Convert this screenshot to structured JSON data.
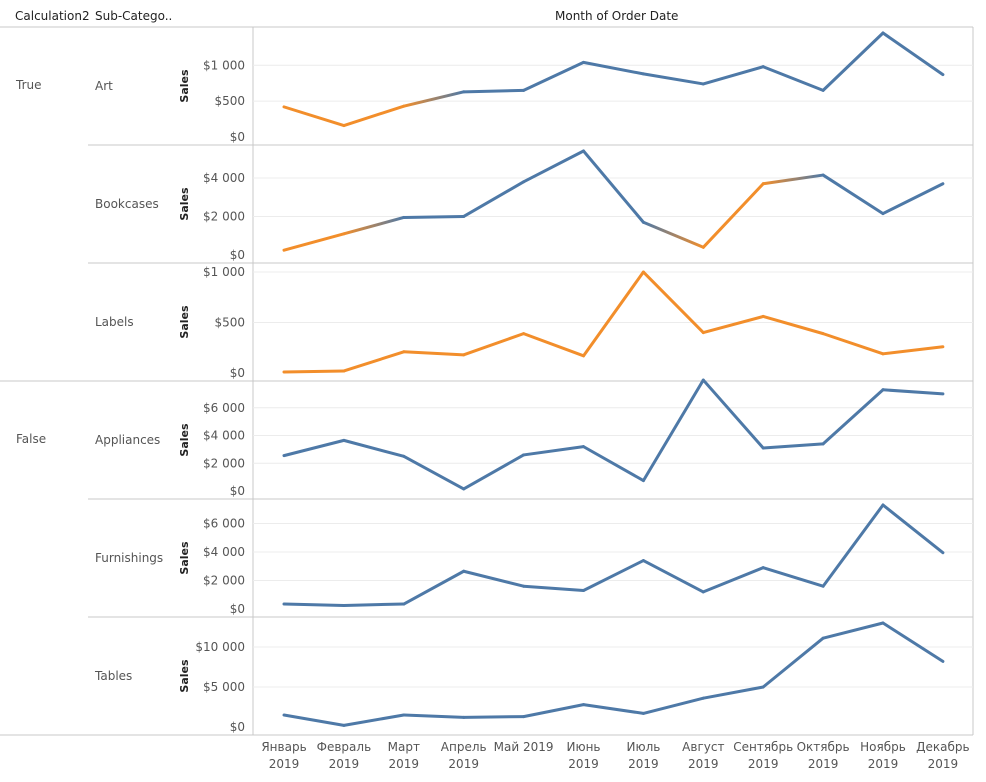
{
  "header": {
    "col1": "Calculation2",
    "col2": "Sub-Catego..",
    "col_title": "Month of Order Date"
  },
  "groups": [
    {
      "label": "True"
    },
    {
      "label": "False"
    }
  ],
  "colors": {
    "blue": "#4e79a7",
    "orange": "#f28e2b",
    "grid": "#ececec",
    "border": "#c8c8c8"
  },
  "chart_data": {
    "type": "line",
    "measure_label": "Sales",
    "x_labels": [
      [
        "Январь",
        "2019"
      ],
      [
        "Февраль",
        "2019"
      ],
      [
        "Март",
        "2019"
      ],
      [
        "Апрель",
        "2019"
      ],
      [
        "Май 2019",
        ""
      ],
      [
        "Июнь",
        "2019"
      ],
      [
        "Июль",
        "2019"
      ],
      [
        "Август",
        "2019"
      ],
      [
        "Сентябрь",
        "2019"
      ],
      [
        "Октябрь",
        "2019"
      ],
      [
        "Ноябрь",
        "2019"
      ],
      [
        "Декабрь",
        "2019"
      ]
    ],
    "panels": [
      {
        "group": "True",
        "name": "Art",
        "ylim": [
          0,
          1450
        ],
        "ticks": [
          {
            "v": 0,
            "l": "$0"
          },
          {
            "v": 500,
            "l": "$500"
          },
          {
            "v": 1000,
            "l": "$1 000"
          }
        ],
        "values": [
          420,
          160,
          430,
          630,
          650,
          1040,
          880,
          740,
          980,
          650,
          1450,
          870
        ],
        "colors": [
          "orange",
          "orange",
          "mix",
          "blue",
          "blue",
          "blue",
          "blue",
          "blue",
          "blue",
          "blue",
          "blue",
          "blue"
        ]
      },
      {
        "group": "True",
        "name": "Bookcases",
        "ylim": [
          0,
          5400
        ],
        "ticks": [
          {
            "v": 0,
            "l": "$0"
          },
          {
            "v": 2000,
            "l": "$2 000"
          },
          {
            "v": 4000,
            "l": "$4 000"
          }
        ],
        "values": [
          250,
          1100,
          1950,
          2000,
          3800,
          5400,
          1700,
          400,
          3700,
          4150,
          2150,
          3700
        ],
        "colors": [
          "orange",
          "mix",
          "blue",
          "blue",
          "blue",
          "blue",
          "mix",
          "orange",
          "mix",
          "blue",
          "blue",
          "blue"
        ]
      },
      {
        "group": "True",
        "name": "Labels",
        "ylim": [
          0,
          1030
        ],
        "ticks": [
          {
            "v": 0,
            "l": "$0"
          },
          {
            "v": 500,
            "l": "$500"
          },
          {
            "v": 1000,
            "l": "$1 000"
          }
        ],
        "values": [
          10,
          20,
          210,
          180,
          390,
          170,
          1000,
          400,
          560,
          390,
          190,
          260
        ],
        "colors": [
          "orange",
          "orange",
          "orange",
          "orange",
          "orange",
          "orange",
          "mix",
          "orange",
          "mix",
          "orange",
          "orange",
          "orange"
        ]
      },
      {
        "group": "False",
        "name": "Appliances",
        "ylim": [
          0,
          7500
        ],
        "ticks": [
          {
            "v": 0,
            "l": "$0"
          },
          {
            "v": 2000,
            "l": "$2 000"
          },
          {
            "v": 4000,
            "l": "$4 000"
          },
          {
            "v": 6000,
            "l": "$6 000"
          }
        ],
        "values": [
          2550,
          3650,
          2500,
          150,
          2600,
          3200,
          750,
          8000,
          3100,
          3400,
          7300,
          7000
        ],
        "colors": [
          "blue",
          "blue",
          "blue",
          "blue",
          "blue",
          "blue",
          "blue",
          "blue",
          "blue",
          "blue",
          "blue",
          "blue"
        ]
      },
      {
        "group": "False",
        "name": "Furnishings",
        "ylim": [
          0,
          7300
        ],
        "ticks": [
          {
            "v": 0,
            "l": "$0"
          },
          {
            "v": 2000,
            "l": "$2 000"
          },
          {
            "v": 4000,
            "l": "$4 000"
          },
          {
            "v": 6000,
            "l": "$6 000"
          }
        ],
        "values": [
          350,
          250,
          350,
          2650,
          1600,
          1300,
          3400,
          1200,
          2900,
          1600,
          7300,
          3950
        ],
        "colors": [
          "blue",
          "blue",
          "blue",
          "blue",
          "blue",
          "blue",
          "blue",
          "blue",
          "blue",
          "blue",
          "blue",
          "blue"
        ]
      },
      {
        "group": "False",
        "name": "Tables",
        "ylim": [
          0,
          13000
        ],
        "ticks": [
          {
            "v": 0,
            "l": "$0"
          },
          {
            "v": 5000,
            "l": "$5 000"
          },
          {
            "v": 10000,
            "l": "$10 000"
          }
        ],
        "values": [
          1500,
          200,
          1500,
          1200,
          1300,
          2800,
          1700,
          3600,
          5000,
          11100,
          13000,
          8200
        ],
        "colors": [
          "blue",
          "blue",
          "blue",
          "blue",
          "blue",
          "blue",
          "blue",
          "blue",
          "blue",
          "blue",
          "blue",
          "blue"
        ]
      }
    ]
  }
}
